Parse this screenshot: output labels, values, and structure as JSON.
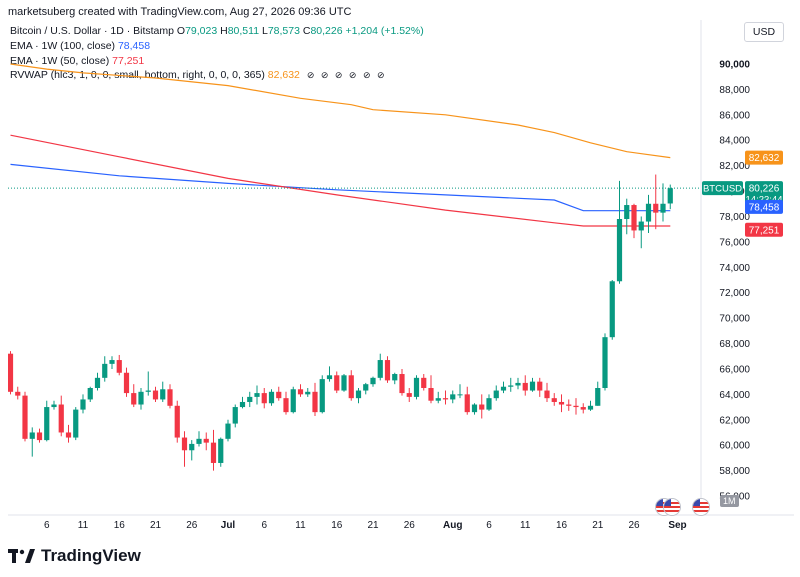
{
  "header": {
    "caption": "marketsuberg created with TradingView.com, Aug 27, 2026 09:36 UTC",
    "symbol_line": "Bitcoin / U.S. Dollar · 1D · Bitstamp",
    "o_label": "O",
    "o_value": "79,023",
    "h_label": "H",
    "h_value": "80,511",
    "l_label": "L",
    "l_value": "78,573",
    "c_label": "C",
    "c_value": "80,226",
    "change": "+1,204 (+1.52%)",
    "currency": "USD"
  },
  "indicators": [
    {
      "label": "EMA · 1W (100, close)",
      "value": "78,458",
      "color": "#2962ff"
    },
    {
      "label": "EMA · 1W (50, close)",
      "value": "77,251",
      "color": "#f23645"
    },
    {
      "label": "RVWAP (hlc3, 1, 0, 0, small, bottom, right, 0, 0, 0, 365)",
      "value": "82,632",
      "color": "#f7931a"
    }
  ],
  "price_badges": [
    {
      "name": "rvwap-price-badge",
      "value": "82,632",
      "color": "#f7931a",
      "price": 82632
    },
    {
      "name": "btc-price-badge",
      "symbol": "BTCUSD",
      "value": "80,226",
      "countdown": "14:23:44",
      "color": "#089981",
      "price": 80226
    },
    {
      "name": "ema100-price-badge",
      "value": "78,458",
      "color": "#2962ff",
      "price": 78458
    },
    {
      "name": "ema50-price-badge",
      "value": "77,251",
      "color": "#f23645",
      "price": 77251
    }
  ],
  "footer": {
    "brand": "TradingView",
    "interval_badge": "1M"
  },
  "chart_data": {
    "type": "candlestick",
    "up_color": "#089981",
    "down_color": "#f23645",
    "ylim": [
      55000,
      91000
    ],
    "y_ticks": [
      "56,000",
      "58,000",
      "60,000",
      "62,000",
      "64,000",
      "66,000",
      "68,000",
      "70,000",
      "72,000",
      "74,000",
      "76,000",
      "78,000",
      "80,000",
      "82,000",
      "84,000",
      "86,000",
      "88,000",
      "90,000"
    ],
    "x_ticks": [
      "6",
      "11",
      "16",
      "21",
      "26",
      "Jul",
      "6",
      "11",
      "16",
      "21",
      "26",
      "Aug",
      "6",
      "11",
      "16",
      "21",
      "26",
      "Sep"
    ],
    "first_date": "2026-06-01",
    "candles": [
      {
        "o": 67200,
        "h": 67400,
        "c": 64200,
        "l": 64000
      },
      {
        "o": 64200,
        "h": 64600,
        "c": 63900,
        "l": 63600
      },
      {
        "o": 63900,
        "h": 64200,
        "c": 60500,
        "l": 60300
      },
      {
        "o": 60500,
        "h": 61400,
        "c": 61000,
        "l": 59100
      },
      {
        "o": 61000,
        "h": 61300,
        "c": 60400,
        "l": 60200
      },
      {
        "o": 60400,
        "h": 63500,
        "c": 63000,
        "l": 60300
      },
      {
        "o": 63000,
        "h": 63500,
        "c": 63200,
        "l": 62800
      },
      {
        "o": 63200,
        "h": 63900,
        "c": 61000,
        "l": 60700
      },
      {
        "o": 61000,
        "h": 61600,
        "c": 60600,
        "l": 60200
      },
      {
        "o": 60600,
        "h": 63000,
        "c": 62800,
        "l": 60400
      },
      {
        "o": 62800,
        "h": 64000,
        "c": 63600,
        "l": 62500
      },
      {
        "o": 63600,
        "h": 64600,
        "c": 64500,
        "l": 63400
      },
      {
        "o": 64500,
        "h": 65700,
        "c": 65300,
        "l": 64300
      },
      {
        "o": 65300,
        "h": 67000,
        "c": 66400,
        "l": 65000
      },
      {
        "o": 66400,
        "h": 67000,
        "c": 66700,
        "l": 66000
      },
      {
        "o": 66700,
        "h": 67100,
        "c": 65700,
        "l": 65500
      },
      {
        "o": 65700,
        "h": 66100,
        "c": 64100,
        "l": 63800
      },
      {
        "o": 64100,
        "h": 64800,
        "c": 63200,
        "l": 63000
      },
      {
        "o": 63200,
        "h": 64500,
        "c": 64200,
        "l": 62800
      },
      {
        "o": 64200,
        "h": 65800,
        "c": 64300,
        "l": 63900
      },
      {
        "o": 64300,
        "h": 64600,
        "c": 63600,
        "l": 63400
      },
      {
        "o": 63600,
        "h": 65000,
        "c": 64400,
        "l": 63400
      },
      {
        "o": 64400,
        "h": 64800,
        "c": 63100,
        "l": 62900
      },
      {
        "o": 63100,
        "h": 63500,
        "c": 60600,
        "l": 60200
      },
      {
        "o": 60600,
        "h": 61100,
        "c": 59600,
        "l": 58300
      },
      {
        "o": 59600,
        "h": 60400,
        "c": 60100,
        "l": 58800
      },
      {
        "o": 60100,
        "h": 61100,
        "c": 60500,
        "l": 59900
      },
      {
        "o": 60500,
        "h": 61000,
        "c": 60200,
        "l": 59600
      },
      {
        "o": 60200,
        "h": 61200,
        "c": 58600,
        "l": 58000
      },
      {
        "o": 58600,
        "h": 60600,
        "c": 60500,
        "l": 58300
      },
      {
        "o": 60500,
        "h": 62000,
        "c": 61700,
        "l": 60300
      },
      {
        "o": 61700,
        "h": 63200,
        "c": 63000,
        "l": 61400
      },
      {
        "o": 63000,
        "h": 63800,
        "c": 63400,
        "l": 62900
      },
      {
        "o": 63400,
        "h": 64200,
        "c": 63800,
        "l": 63000
      },
      {
        "o": 63800,
        "h": 64700,
        "c": 64100,
        "l": 63200
      },
      {
        "o": 64100,
        "h": 64500,
        "c": 63300,
        "l": 62900
      },
      {
        "o": 63300,
        "h": 64400,
        "c": 64200,
        "l": 63100
      },
      {
        "o": 64200,
        "h": 64600,
        "c": 63700,
        "l": 63500
      },
      {
        "o": 63700,
        "h": 64200,
        "c": 62600,
        "l": 62400
      },
      {
        "o": 62600,
        "h": 64600,
        "c": 64400,
        "l": 62500
      },
      {
        "o": 64400,
        "h": 64800,
        "c": 64000,
        "l": 63800
      },
      {
        "o": 64000,
        "h": 64500,
        "c": 64200,
        "l": 63800
      },
      {
        "o": 64200,
        "h": 64900,
        "c": 62600,
        "l": 62300
      },
      {
        "o": 62600,
        "h": 65500,
        "c": 65200,
        "l": 62500
      },
      {
        "o": 65200,
        "h": 66200,
        "c": 65500,
        "l": 65000
      },
      {
        "o": 65500,
        "h": 65800,
        "c": 64300,
        "l": 64100
      },
      {
        "o": 64300,
        "h": 65600,
        "c": 65500,
        "l": 64200
      },
      {
        "o": 65500,
        "h": 65900,
        "c": 63700,
        "l": 63500
      },
      {
        "o": 63700,
        "h": 64500,
        "c": 64300,
        "l": 63300
      },
      {
        "o": 64300,
        "h": 64900,
        "c": 64800,
        "l": 64000
      },
      {
        "o": 64800,
        "h": 65400,
        "c": 65300,
        "l": 64600
      },
      {
        "o": 65300,
        "h": 67200,
        "c": 66700,
        "l": 65100
      },
      {
        "o": 66700,
        "h": 67000,
        "c": 65100,
        "l": 64900
      },
      {
        "o": 65100,
        "h": 65700,
        "c": 65600,
        "l": 64800
      },
      {
        "o": 65600,
        "h": 66000,
        "c": 64100,
        "l": 63900
      },
      {
        "o": 64100,
        "h": 64500,
        "c": 63800,
        "l": 63400
      },
      {
        "o": 63800,
        "h": 65500,
        "c": 65300,
        "l": 63600
      },
      {
        "o": 65300,
        "h": 65600,
        "c": 64500,
        "l": 64300
      },
      {
        "o": 64500,
        "h": 65500,
        "c": 63500,
        "l": 63300
      },
      {
        "o": 63500,
        "h": 64200,
        "c": 63700,
        "l": 63300
      },
      {
        "o": 63700,
        "h": 64300,
        "c": 63600,
        "l": 63200
      },
      {
        "o": 63600,
        "h": 64300,
        "c": 64000,
        "l": 63300
      },
      {
        "o": 64000,
        "h": 64800,
        "c": 64000,
        "l": 63700
      },
      {
        "o": 64000,
        "h": 64600,
        "c": 62600,
        "l": 62400
      },
      {
        "o": 62600,
        "h": 63300,
        "c": 63200,
        "l": 62400
      },
      {
        "o": 63200,
        "h": 64000,
        "c": 62800,
        "l": 62100
      },
      {
        "o": 62800,
        "h": 64000,
        "c": 63700,
        "l": 62700
      },
      {
        "o": 63700,
        "h": 64700,
        "c": 64300,
        "l": 63500
      },
      {
        "o": 64300,
        "h": 65000,
        "c": 64600,
        "l": 64100
      },
      {
        "o": 64600,
        "h": 65300,
        "c": 64700,
        "l": 64200
      },
      {
        "o": 64700,
        "h": 65300,
        "c": 64900,
        "l": 64400
      },
      {
        "o": 64900,
        "h": 65500,
        "c": 64300,
        "l": 63900
      },
      {
        "o": 64300,
        "h": 65300,
        "c": 65000,
        "l": 64200
      },
      {
        "o": 65000,
        "h": 65300,
        "c": 64300,
        "l": 63800
      },
      {
        "o": 64300,
        "h": 64900,
        "c": 63700,
        "l": 63400
      },
      {
        "o": 63700,
        "h": 64100,
        "c": 63400,
        "l": 63100
      },
      {
        "o": 63400,
        "h": 64000,
        "c": 63200,
        "l": 62600
      },
      {
        "o": 63200,
        "h": 63600,
        "c": 63100,
        "l": 62700
      },
      {
        "o": 63100,
        "h": 63700,
        "c": 63000,
        "l": 62400
      },
      {
        "o": 63000,
        "h": 63300,
        "c": 62800,
        "l": 62500
      },
      {
        "o": 62800,
        "h": 63500,
        "c": 63100,
        "l": 62700
      },
      {
        "o": 63100,
        "h": 65000,
        "c": 64500,
        "l": 63100
      },
      {
        "o": 64500,
        "h": 68800,
        "c": 68500,
        "l": 64300
      },
      {
        "o": 68500,
        "h": 73000,
        "c": 72900,
        "l": 68300
      },
      {
        "o": 72900,
        "h": 80800,
        "c": 77800,
        "l": 72700
      },
      {
        "o": 77800,
        "h": 79400,
        "c": 78900,
        "l": 76600
      },
      {
        "o": 78900,
        "h": 79000,
        "c": 76900,
        "l": 76300
      },
      {
        "o": 76900,
        "h": 78000,
        "c": 77600,
        "l": 75500
      },
      {
        "o": 77600,
        "h": 79700,
        "c": 79000,
        "l": 76700
      },
      {
        "o": 79000,
        "h": 81300,
        "c": 78300,
        "l": 77000
      },
      {
        "o": 78300,
        "h": 80600,
        "c": 79000,
        "l": 77600
      },
      {
        "o": 79023,
        "h": 80511,
        "c": 80226,
        "l": 78573
      }
    ],
    "series": [
      {
        "name": "EMA · 1W (100, close)",
        "color": "#2962ff",
        "points": [
          [
            0,
            82100
          ],
          [
            15,
            81200
          ],
          [
            30,
            80600
          ],
          [
            45,
            80100
          ],
          [
            60,
            79700
          ],
          [
            75,
            79300
          ],
          [
            79,
            78458
          ],
          [
            81,
            78458
          ],
          [
            91,
            78458
          ]
        ]
      },
      {
        "name": "EMA · 1W (50, close)",
        "color": "#f23645",
        "points": [
          [
            0,
            84400
          ],
          [
            15,
            82700
          ],
          [
            30,
            81000
          ],
          [
            45,
            79700
          ],
          [
            60,
            78500
          ],
          [
            75,
            77500
          ],
          [
            79,
            77251
          ],
          [
            81,
            77251
          ],
          [
            91,
            77251
          ]
        ]
      },
      {
        "name": "RVWAP (hlc3, 1, 0, 0, small, bottom, right, 0, 0, 0, 365)",
        "color": "#f7931a",
        "points": [
          [
            0,
            90000
          ],
          [
            5,
            89600
          ],
          [
            10,
            89300
          ],
          [
            20,
            88900
          ],
          [
            30,
            88300
          ],
          [
            40,
            87300
          ],
          [
            47,
            86800
          ],
          [
            50,
            86400
          ],
          [
            60,
            86000
          ],
          [
            70,
            85200
          ],
          [
            75,
            84600
          ],
          [
            80,
            83800
          ],
          [
            85,
            83100
          ],
          [
            91,
            82632
          ]
        ]
      }
    ]
  }
}
